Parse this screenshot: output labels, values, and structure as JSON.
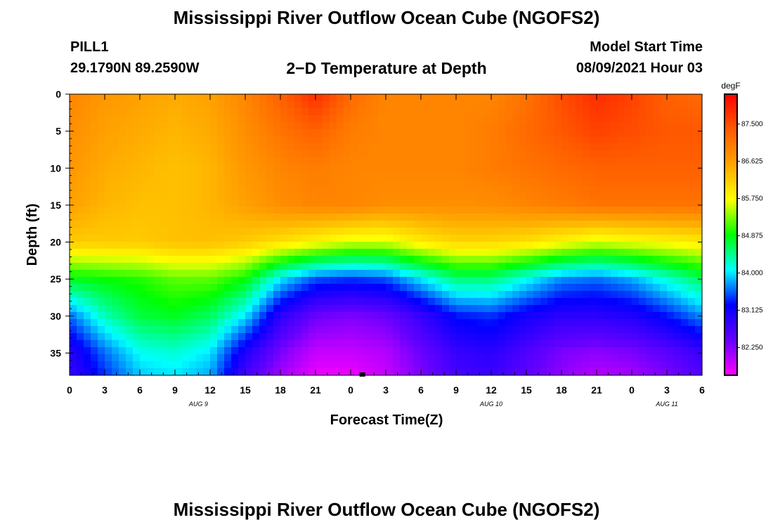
{
  "title_top": "Mississippi River Outflow Ocean Cube (NGOFS2)",
  "title_bottom": "Mississippi River Outflow Ocean Cube (NGOFS2)",
  "station": {
    "name": "PILL1",
    "coords": "29.1790N  89.2590W"
  },
  "plot_title": "2−D Temperature at Depth",
  "model": {
    "label": "Model Start Time",
    "time": "08/09/2021 Hour 03"
  },
  "colorbar": {
    "unit": "degF",
    "ticks": [
      "87.500",
      "86.625",
      "85.750",
      "84.875",
      "84.000",
      "83.125",
      "82.250"
    ],
    "range": [
      81.6,
      88.2
    ],
    "colors": [
      "#ff00ff",
      "#6600ff",
      "#0000ff",
      "#00ffff",
      "#00ff00",
      "#ffff00",
      "#ffa500",
      "#ff5a00",
      "#ff0000"
    ]
  },
  "chart_data": {
    "type": "heatmap",
    "xlabel": "Forecast Time(Z)",
    "ylabel": "Depth (ft)",
    "x_tick_labels": [
      "0",
      "3",
      "6",
      "9",
      "12",
      "15",
      "18",
      "21",
      "0",
      "3",
      "6",
      "9",
      "12",
      "15",
      "18",
      "21",
      "0",
      "3",
      "6"
    ],
    "x_range_hours": [
      0,
      54
    ],
    "date_labels": [
      {
        "label": "AUG 9",
        "hour": 11
      },
      {
        "label": "AUG 10",
        "hour": 36
      },
      {
        "label": "AUG 11",
        "hour": 51
      }
    ],
    "y_tick_labels": [
      "0",
      "5",
      "10",
      "15",
      "20",
      "25",
      "30",
      "35"
    ],
    "y_range_ft": [
      0,
      38
    ],
    "value_unit": "degF",
    "value_range": [
      81.6,
      88.2
    ],
    "marker": {
      "hour": 25,
      "depth_ft": 38
    },
    "hours_sampled": [
      0,
      3,
      6,
      9,
      12,
      15,
      18,
      21,
      24,
      27,
      30,
      33,
      36,
      39,
      42,
      45,
      48,
      51,
      54
    ],
    "depths_sampled_ft": [
      0,
      5,
      10,
      15,
      20,
      25,
      30,
      35,
      38
    ],
    "values_degF": [
      [
        86.9,
        86.7,
        86.6,
        86.5,
        86.6,
        86.9,
        87.3,
        87.8,
        87.2,
        86.9,
        86.9,
        86.9,
        86.9,
        87.1,
        87.5,
        87.8,
        87.6,
        87.3,
        87.2
      ],
      [
        86.8,
        86.6,
        86.5,
        86.4,
        86.5,
        86.8,
        87.1,
        87.3,
        87.0,
        86.9,
        86.9,
        86.9,
        87.0,
        87.2,
        87.4,
        87.6,
        87.5,
        87.4,
        87.4
      ],
      [
        86.7,
        86.5,
        86.4,
        86.3,
        86.4,
        86.7,
        86.9,
        87.0,
        86.9,
        86.9,
        86.9,
        86.9,
        87.0,
        87.1,
        87.2,
        87.3,
        87.3,
        87.3,
        87.3
      ],
      [
        86.6,
        86.4,
        86.3,
        86.3,
        86.4,
        86.6,
        86.8,
        86.9,
        86.9,
        86.8,
        86.8,
        86.8,
        86.8,
        86.9,
        87.0,
        87.1,
        87.1,
        87.1,
        87.1
      ],
      [
        86.2,
        86.2,
        86.2,
        86.3,
        86.3,
        86.2,
        86.0,
        85.8,
        85.6,
        85.6,
        85.9,
        86.1,
        86.1,
        86.0,
        85.8,
        85.6,
        85.7,
        85.8,
        85.9
      ],
      [
        84.8,
        84.9,
        85.0,
        85.2,
        85.2,
        84.9,
        84.0,
        83.5,
        83.4,
        83.5,
        84.0,
        84.5,
        84.5,
        84.1,
        83.7,
        83.6,
        83.8,
        84.2,
        84.6
      ],
      [
        83.6,
        84.3,
        84.7,
        84.8,
        84.6,
        84.0,
        82.9,
        82.4,
        82.3,
        82.4,
        82.8,
        83.3,
        83.4,
        83.1,
        82.9,
        82.9,
        83.0,
        83.3,
        83.7
      ],
      [
        82.9,
        83.6,
        84.1,
        84.2,
        84.0,
        83.0,
        82.3,
        81.9,
        81.9,
        82.0,
        82.4,
        82.8,
        82.9,
        82.6,
        82.3,
        82.2,
        82.3,
        82.5,
        82.8
      ],
      [
        82.8,
        83.4,
        83.9,
        84.0,
        83.8,
        82.7,
        82.1,
        81.7,
        81.7,
        81.9,
        82.3,
        82.7,
        82.8,
        82.5,
        82.2,
        82.0,
        82.1,
        82.3,
        82.6
      ]
    ]
  }
}
